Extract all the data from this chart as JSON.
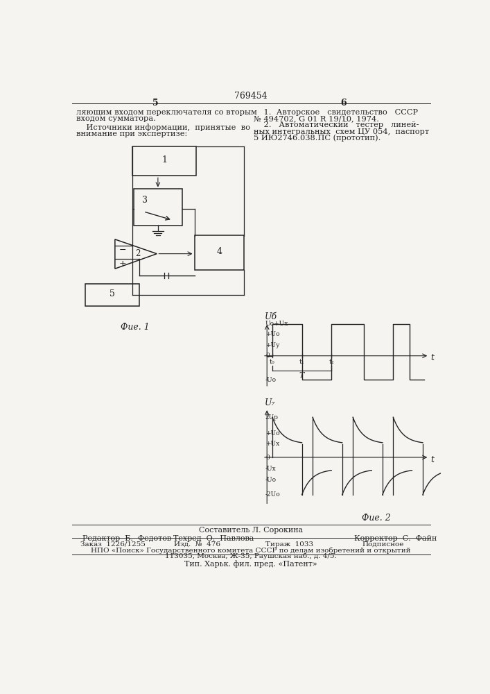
{
  "title_num": "769454",
  "page_left": "5",
  "page_right": "6",
  "text_left1": "ляющим входом переключателя со вторым",
  "text_left2": "входом сумматора.",
  "text_left3": "    Источники информации,  принятые  во",
  "text_left4": "внимание при экспертизе:",
  "ref1": "    1.  Авторское   свидетельство   СССР",
  "ref2": "№ 494702, G 01 R 19/10, 1974.",
  "ref3": "    2.   Автоматический   тестер   линей-",
  "ref4": "ных интегральных  схем ЦУ 054,  паспорт",
  "ref5": "5 ИЮ2746.038.ПС (прототип).",
  "fig1_label": "Фue. 1",
  "fig2_label": "Фue. 2",
  "ug_label": "Uб",
  "ut_label": "U₇",
  "t_label": "t",
  "ug_levels": [
    "Uо+Uх",
    "+Uо",
    "+Uу",
    "0",
    "-Uо"
  ],
  "u7_levels": [
    "2Uр",
    "+Uо",
    "+Uх",
    "0",
    "-Uх",
    "-Uо",
    "-2Uо"
  ],
  "footer_composer": "Составитель Л. Сорокина",
  "footer_editor": "Редактор  Б.  Федотов",
  "footer_tech": "Техред  О.  Павлова",
  "footer_correct": "Корректор  С.  Файн",
  "footer_order": "Заказ  1226/1255",
  "footer_pub": "Изд.  №  476",
  "footer_circ": "Тираж  1033",
  "footer_sign": "Подписное",
  "footer_npo": "НПО «Поиск» Государственного комитета СССР по делам изобретений и открытий",
  "footer_addr": "113035, Москва, Ж-35, Раушская наб., д. 4/5.",
  "footer_tip": "Тип. Харьк. фил. пред. «Патент»",
  "bg_color": "#f5f4f0",
  "text_color": "#222222"
}
